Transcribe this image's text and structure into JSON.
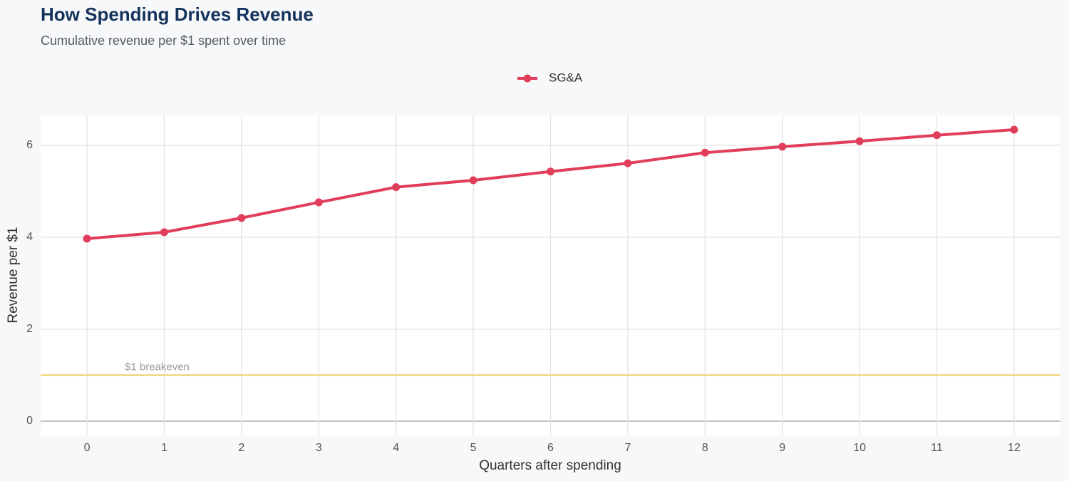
{
  "chart_data": {
    "type": "line",
    "title": "How Spending Drives Revenue",
    "subtitle": "Cumulative revenue per $1 spent over time",
    "x_label": "Quarters after spending",
    "y_label": "Revenue per $1",
    "x": [
      0,
      1,
      2,
      3,
      4,
      5,
      6,
      7,
      8,
      9,
      10,
      11,
      12
    ],
    "series": [
      {
        "name": "SG&A",
        "color": "#e03e5a",
        "values": [
          3.97,
          4.11,
          4.42,
          4.76,
          5.09,
          5.24,
          5.43,
          5.61,
          5.84,
          5.97,
          6.09,
          6.22,
          6.34
        ]
      }
    ],
    "reference_line": {
      "value": 1,
      "label": "$1 breakeven",
      "color": "#f3d47c"
    },
    "xlim": [
      -0.6,
      12.6
    ],
    "ylim": [
      -0.31,
      6.65
    ],
    "xticks": [
      0,
      1,
      2,
      3,
      4,
      5,
      6,
      7,
      8,
      9,
      10,
      11,
      12
    ],
    "yticks": [
      0,
      2,
      4,
      6
    ],
    "grid": true,
    "legend": "top"
  }
}
